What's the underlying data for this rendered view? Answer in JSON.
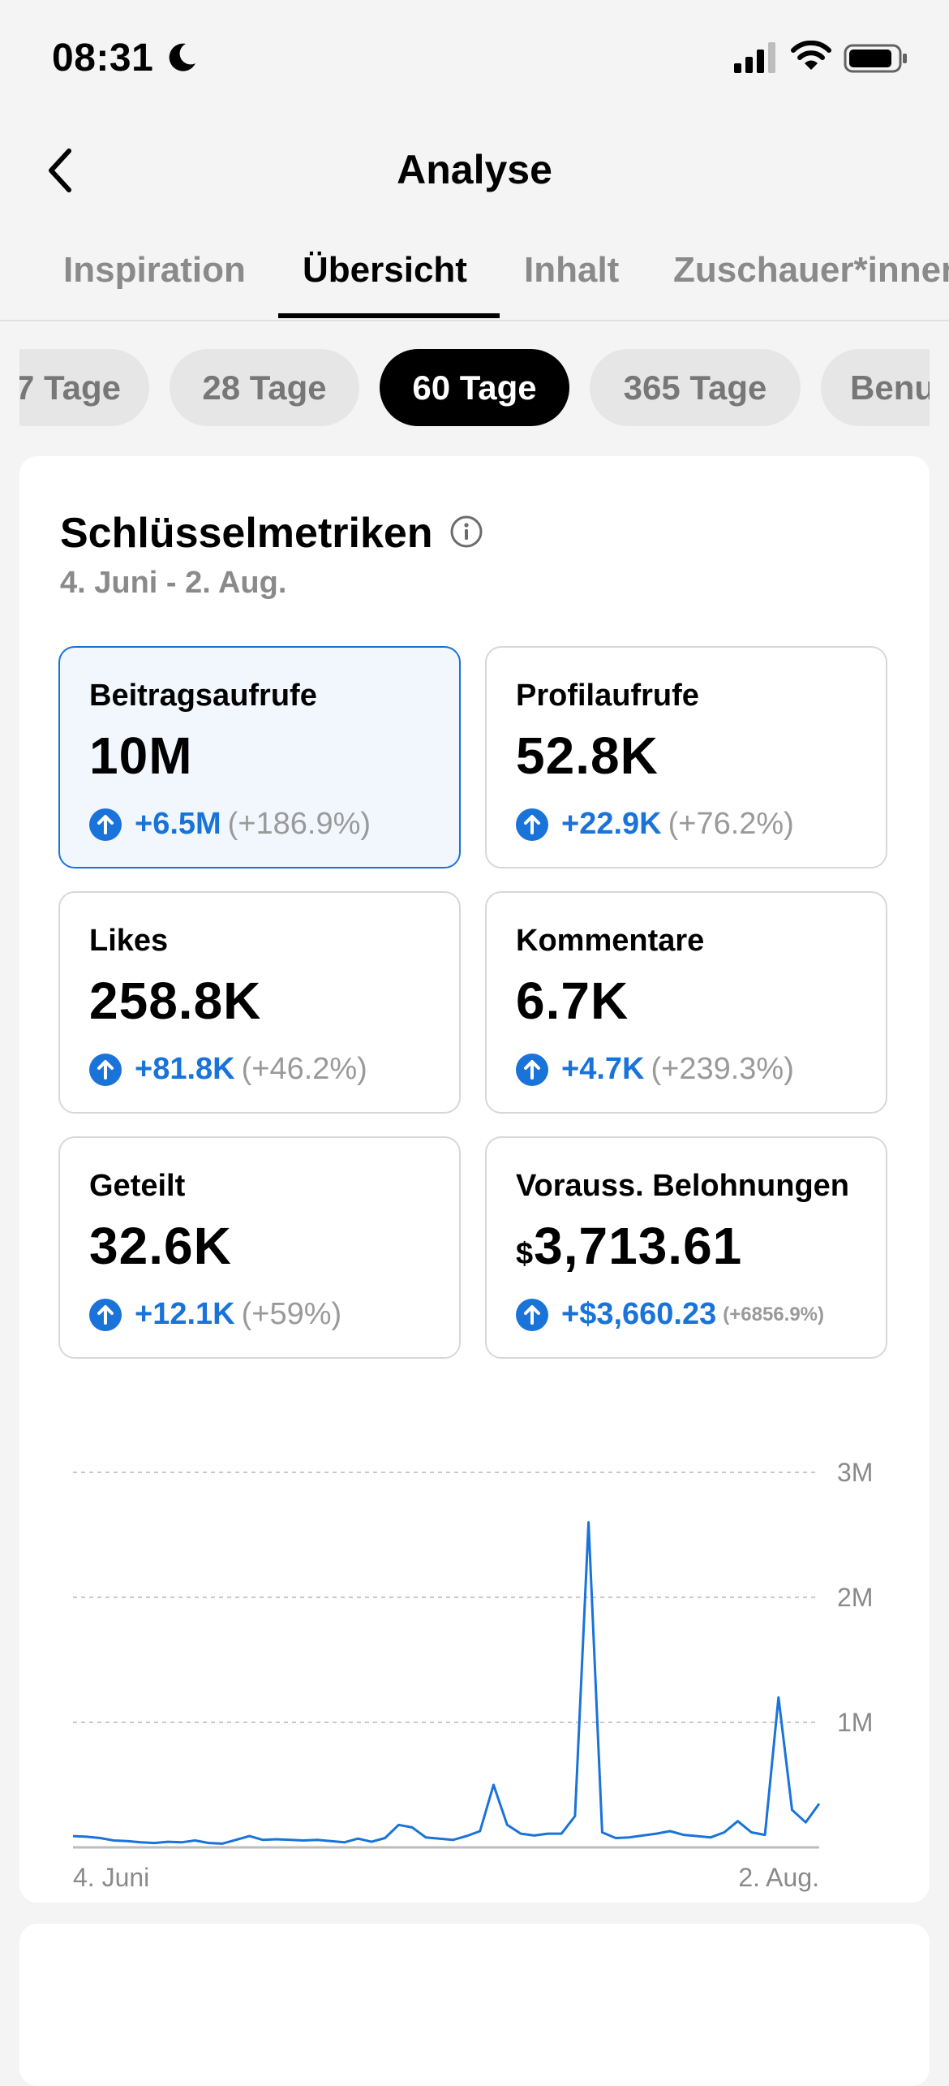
{
  "status": {
    "time": "08:31"
  },
  "header": {
    "title": "Analyse"
  },
  "tabs": [
    {
      "label": "Inspiration",
      "active": false
    },
    {
      "label": "Übersicht",
      "active": true
    },
    {
      "label": "Inhalt",
      "active": false
    },
    {
      "label": "Zuschauer*innen",
      "active": false
    }
  ],
  "periods": [
    {
      "label": "7 Tage",
      "active": false
    },
    {
      "label": "28 Tage",
      "active": false
    },
    {
      "label": "60 Tage",
      "active": true
    },
    {
      "label": "365 Tage",
      "active": false
    },
    {
      "label": "Benutzerdefiniert",
      "active": false
    }
  ],
  "metrics_section": {
    "title": "Schlüsselmetriken",
    "date_range": "4. Juni - 2. Aug.",
    "cards": [
      {
        "label": "Beitragsaufrufe",
        "currency": "",
        "value": "10M",
        "delta": "+6.5M",
        "pct": "(+186.9%)",
        "selected": true
      },
      {
        "label": "Profilaufrufe",
        "currency": "",
        "value": "52.8K",
        "delta": "+22.9K",
        "pct": "(+76.2%)",
        "selected": false
      },
      {
        "label": "Likes",
        "currency": "",
        "value": "258.8K",
        "delta": "+81.8K",
        "pct": "(+46.2%)",
        "selected": false
      },
      {
        "label": "Kommentare",
        "currency": "",
        "value": "6.7K",
        "delta": "+4.7K",
        "pct": "(+239.3%)",
        "selected": false
      },
      {
        "label": "Geteilt",
        "currency": "",
        "value": "32.6K",
        "delta": "+12.1K",
        "pct": "(+59%)",
        "selected": false
      },
      {
        "label": "Vorauss. Belohnungen",
        "currency": "$",
        "value": "3,713.61",
        "delta": "+$3,660.23",
        "pct": "(+6856.9%)",
        "selected": false
      }
    ]
  },
  "colors": {
    "accent": "#1a73d9",
    "selected_bg": "#f2f7fd",
    "muted": "#8a8a8a"
  },
  "chart_data": {
    "type": "line",
    "series": [
      {
        "values": [
          90000,
          85000,
          75000,
          55000,
          50000,
          40000,
          35000,
          45000,
          40000,
          55000,
          35000,
          30000,
          60000,
          90000,
          60000,
          65000,
          60000,
          55000,
          60000,
          50000,
          40000,
          70000,
          45000,
          75000,
          180000,
          160000,
          80000,
          70000,
          60000,
          90000,
          130000,
          500000,
          180000,
          110000,
          95000,
          110000,
          110000,
          250000,
          2600000,
          120000,
          75000,
          80000,
          95000,
          110000,
          130000,
          100000,
          90000,
          80000,
          120000,
          210000,
          120000,
          100000,
          1200000,
          300000,
          200000,
          350000
        ]
      }
    ],
    "x_tick_labels": [
      "4. Juni",
      "2. Aug."
    ],
    "y_tick_labels": [
      "1M",
      "2M",
      "3M"
    ],
    "ylim": [
      0,
      3000000
    ],
    "grid": true
  }
}
